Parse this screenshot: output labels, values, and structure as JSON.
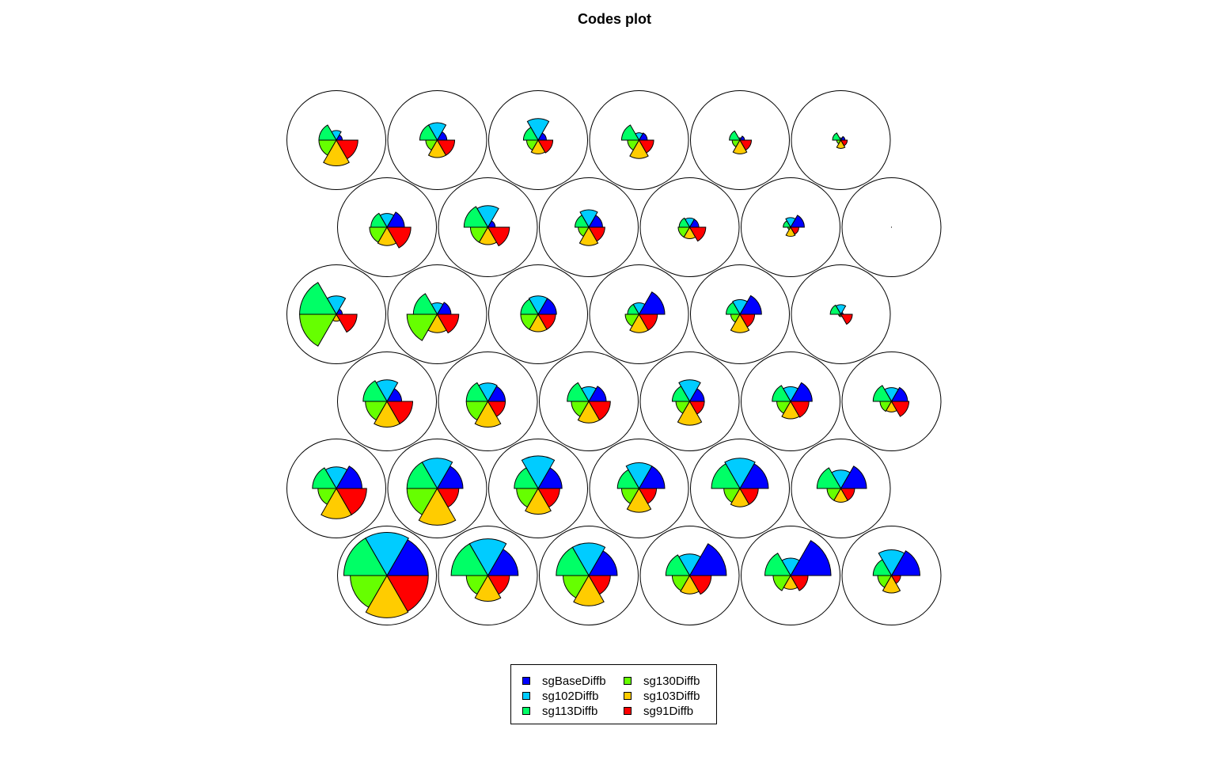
{
  "title": "Codes plot",
  "chart_data": {
    "type": "som-codes-segment-plot",
    "title": "Codes plot",
    "grid": {
      "topology": "hexagonal",
      "xdim": 6,
      "ydim": 6
    },
    "variables": [
      "sgBaseDiffb",
      "sg102Diffb",
      "sg113Diffb",
      "sg130Diffb",
      "sg103Diffb",
      "sg91Diffb"
    ],
    "colors": [
      "#0000FF",
      "#00CCFF",
      "#00FF66",
      "#66FF00",
      "#FFCC00",
      "#FF0000"
    ],
    "legend": {
      "position": "bottom",
      "columns": 2
    },
    "rows": [
      [
        [
          0.13,
          0.21,
          0.38,
          0.38,
          0.56,
          0.47
        ],
        [
          0.21,
          0.38,
          0.38,
          0.25,
          0.38,
          0.38
        ],
        [
          0.18,
          0.47,
          0.32,
          0.25,
          0.3,
          0.32
        ],
        [
          0.18,
          0.16,
          0.38,
          0.25,
          0.4,
          0.32
        ],
        [
          0.1,
          0.05,
          0.23,
          0.17,
          0.3,
          0.25
        ],
        [
          0.09,
          0.05,
          0.18,
          0.09,
          0.18,
          0.14
        ]
      ],
      [
        [
          0.38,
          0.3,
          0.35,
          0.38,
          0.4,
          0.52
        ],
        [
          0.16,
          0.47,
          0.52,
          0.38,
          0.38,
          0.47
        ],
        [
          0.3,
          0.38,
          0.3,
          0.23,
          0.4,
          0.35
        ],
        [
          0.2,
          0.2,
          0.23,
          0.25,
          0.25,
          0.35
        ],
        [
          0.3,
          0.21,
          0.16,
          0.06,
          0.2,
          0.18
        ],
        [
          0.0,
          0.0,
          0.0,
          0.0,
          0.0,
          0.0
        ]
      ],
      [
        [
          0.13,
          0.4,
          0.8,
          0.8,
          0.15,
          0.45
        ],
        [
          0.3,
          0.25,
          0.52,
          0.66,
          0.4,
          0.47
        ],
        [
          0.4,
          0.4,
          0.38,
          0.38,
          0.38,
          0.38
        ],
        [
          0.56,
          0.25,
          0.25,
          0.3,
          0.4,
          0.4
        ],
        [
          0.47,
          0.32,
          0.3,
          0.2,
          0.4,
          0.32
        ],
        [
          0.05,
          0.21,
          0.23,
          0.05,
          0.05,
          0.25
        ]
      ],
      [
        [
          0.32,
          0.47,
          0.52,
          0.47,
          0.56,
          0.56
        ],
        [
          0.38,
          0.4,
          0.47,
          0.47,
          0.56,
          0.38
        ],
        [
          0.38,
          0.32,
          0.47,
          0.38,
          0.47,
          0.47
        ],
        [
          0.32,
          0.47,
          0.38,
          0.3,
          0.52,
          0.32
        ],
        [
          0.47,
          0.32,
          0.4,
          0.3,
          0.38,
          0.4
        ],
        [
          0.35,
          0.3,
          0.4,
          0.25,
          0.23,
          0.38
        ]
      ],
      [
        [
          0.56,
          0.47,
          0.52,
          0.4,
          0.66,
          0.66
        ],
        [
          0.56,
          0.66,
          0.66,
          0.66,
          0.8,
          0.47
        ],
        [
          0.52,
          0.71,
          0.52,
          0.47,
          0.56,
          0.47
        ],
        [
          0.56,
          0.56,
          0.47,
          0.38,
          0.52,
          0.38
        ],
        [
          0.62,
          0.66,
          0.62,
          0.35,
          0.4,
          0.4
        ],
        [
          0.56,
          0.4,
          0.52,
          0.3,
          0.3,
          0.3
        ]
      ],
      [
        [
          0.9,
          0.94,
          0.94,
          0.8,
          0.92,
          0.9
        ],
        [
          0.66,
          0.8,
          0.8,
          0.47,
          0.56,
          0.47
        ],
        [
          0.62,
          0.71,
          0.71,
          0.56,
          0.66,
          0.47
        ],
        [
          0.8,
          0.47,
          0.52,
          0.38,
          0.4,
          0.47
        ],
        [
          0.88,
          0.38,
          0.56,
          0.38,
          0.3,
          0.38
        ],
        [
          0.62,
          0.56,
          0.4,
          0.3,
          0.38,
          0.2
        ]
      ]
    ]
  },
  "legend_labels": [
    "sgBaseDiffb",
    "sg102Diffb",
    "sg113Diffb",
    "sg130Diffb",
    "sg103Diffb",
    "sg91Diffb"
  ]
}
